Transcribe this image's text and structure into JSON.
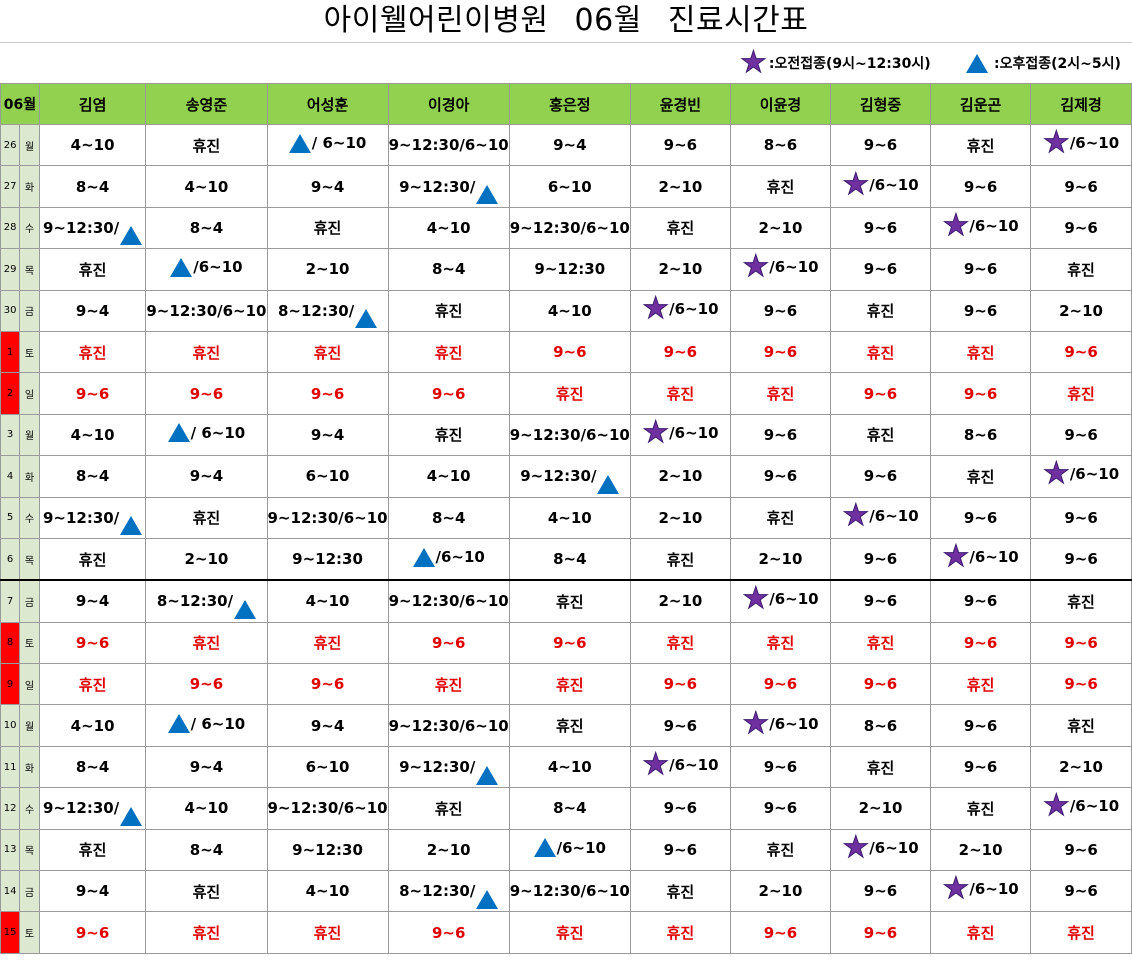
{
  "title": [
    "아이웰어린이병원",
    "06월",
    "진료시간표"
  ],
  "legend": {
    "morning": ":오전접종(9시~12:30시)",
    "afternoon": ":오후접종(2시~5시)"
  },
  "header": {
    "month": "06월",
    "doctors": [
      "김염",
      "송영준",
      "어성훈",
      "이경아",
      "홍은정",
      "윤경빈",
      "이윤경",
      "김형중",
      "김운곤",
      "김제경"
    ]
  },
  "colors": {
    "header_bg": "#92d050",
    "weekend_text": "#e00000",
    "weekend_day_bg": "#ff0000",
    "triangle": "#0070c0",
    "star": "#7030a0"
  },
  "rows": [
    {
      "day": "26",
      "dow": "월",
      "weekend": false,
      "cells": [
        "4~10",
        "휴진",
        "▲/ 6~10",
        "9~12:30/6~10",
        "9~4",
        "9~6",
        "8~6",
        "9~6",
        "휴진",
        "★/6~10"
      ]
    },
    {
      "day": "27",
      "dow": "화",
      "weekend": false,
      "cells": [
        "8~4",
        "4~10",
        "9~4",
        "9~12:30/▲",
        "6~10",
        "2~10",
        "휴진",
        "★/6~10",
        "9~6",
        "9~6"
      ]
    },
    {
      "day": "28",
      "dow": "수",
      "weekend": false,
      "cells": [
        "9~12:30/▲",
        "8~4",
        "휴진",
        "4~10",
        "9~12:30/6~10",
        "휴진",
        "2~10",
        "9~6",
        "★/6~10",
        "9~6"
      ]
    },
    {
      "day": "29",
      "dow": "목",
      "weekend": false,
      "cells": [
        "휴진",
        "▲/6~10",
        "2~10",
        "8~4",
        "9~12:30",
        "2~10",
        "★/6~10",
        "9~6",
        "9~6",
        "휴진"
      ]
    },
    {
      "day": "30",
      "dow": "금",
      "weekend": false,
      "cells": [
        "9~4",
        "9~12:30/6~10",
        "8~12:30/▲",
        "휴진",
        "4~10",
        "★/6~10",
        "9~6",
        "휴진",
        "9~6",
        "2~10"
      ]
    },
    {
      "day": "1",
      "dow": "토",
      "weekend": true,
      "cells": [
        "휴진",
        "휴진",
        "휴진",
        "휴진",
        "9~6",
        "9~6",
        "9~6",
        "휴진",
        "휴진",
        "9~6"
      ]
    },
    {
      "day": "2",
      "dow": "일",
      "weekend": true,
      "cells": [
        "9~6",
        "9~6",
        "9~6",
        "9~6",
        "휴진",
        "휴진",
        "휴진",
        "9~6",
        "9~6",
        "휴진"
      ]
    },
    {
      "day": "3",
      "dow": "월",
      "weekend": false,
      "cells": [
        "4~10",
        "▲/ 6~10",
        "9~4",
        "휴진",
        "9~12:30/6~10",
        "★/6~10",
        "9~6",
        "휴진",
        "8~6",
        "9~6"
      ]
    },
    {
      "day": "4",
      "dow": "화",
      "weekend": false,
      "cells": [
        "8~4",
        "9~4",
        "6~10",
        "4~10",
        "9~12:30/▲",
        "2~10",
        "9~6",
        "9~6",
        "휴진",
        "★/6~10"
      ]
    },
    {
      "day": "5",
      "dow": "수",
      "weekend": false,
      "cells": [
        "9~12:30/▲",
        "휴진",
        "9~12:30/6~10",
        "8~4",
        "4~10",
        "2~10",
        "휴진",
        "★/6~10",
        "9~6",
        "9~6"
      ]
    },
    {
      "day": "6",
      "dow": "목",
      "weekend": false,
      "thick": true,
      "cells": [
        "휴진",
        "2~10",
        "9~12:30",
        "▲/6~10",
        "8~4",
        "휴진",
        "2~10",
        "9~6",
        "★/6~10",
        "9~6"
      ]
    },
    {
      "day": "7",
      "dow": "금",
      "weekend": false,
      "cells": [
        "9~4",
        "8~12:30/▲",
        "4~10",
        "9~12:30/6~10",
        "휴진",
        "2~10",
        "★/6~10",
        "9~6",
        "9~6",
        "휴진"
      ]
    },
    {
      "day": "8",
      "dow": "토",
      "weekend": true,
      "cells": [
        "9~6",
        "휴진",
        "휴진",
        "9~6",
        "9~6",
        "휴진",
        "휴진",
        "휴진",
        "9~6",
        "9~6"
      ]
    },
    {
      "day": "9",
      "dow": "일",
      "weekend": true,
      "cells": [
        "휴진",
        "9~6",
        "9~6",
        "휴진",
        "휴진",
        "9~6",
        "9~6",
        "9~6",
        "휴진",
        "9~6"
      ]
    },
    {
      "day": "10",
      "dow": "월",
      "weekend": false,
      "cells": [
        "4~10",
        "▲/ 6~10",
        "9~4",
        "9~12:30/6~10",
        "휴진",
        "9~6",
        "★/6~10",
        "8~6",
        "9~6",
        "휴진"
      ]
    },
    {
      "day": "11",
      "dow": "화",
      "weekend": false,
      "cells": [
        "8~4",
        "9~4",
        "6~10",
        "9~12:30/▲",
        "4~10",
        "★/6~10",
        "9~6",
        "휴진",
        "9~6",
        "2~10"
      ]
    },
    {
      "day": "12",
      "dow": "수",
      "weekend": false,
      "cells": [
        "9~12:30/▲",
        "4~10",
        "9~12:30/6~10",
        "휴진",
        "8~4",
        "9~6",
        "9~6",
        "2~10",
        "휴진",
        "★/6~10"
      ]
    },
    {
      "day": "13",
      "dow": "목",
      "weekend": false,
      "cells": [
        "휴진",
        "8~4",
        "9~12:30",
        "2~10",
        "▲/6~10",
        "9~6",
        "휴진",
        "★/6~10",
        "2~10",
        "9~6"
      ]
    },
    {
      "day": "14",
      "dow": "금",
      "weekend": false,
      "cells": [
        "9~4",
        "휴진",
        "4~10",
        "8~12:30/▲",
        "9~12:30/6~10",
        "휴진",
        "2~10",
        "9~6",
        "★/6~10",
        "9~6"
      ]
    },
    {
      "day": "15",
      "dow": "토",
      "weekend": true,
      "cells": [
        "9~6",
        "휴진",
        "휴진",
        "9~6",
        "휴진",
        "휴진",
        "9~6",
        "9~6",
        "휴진",
        "휴진"
      ]
    }
  ]
}
